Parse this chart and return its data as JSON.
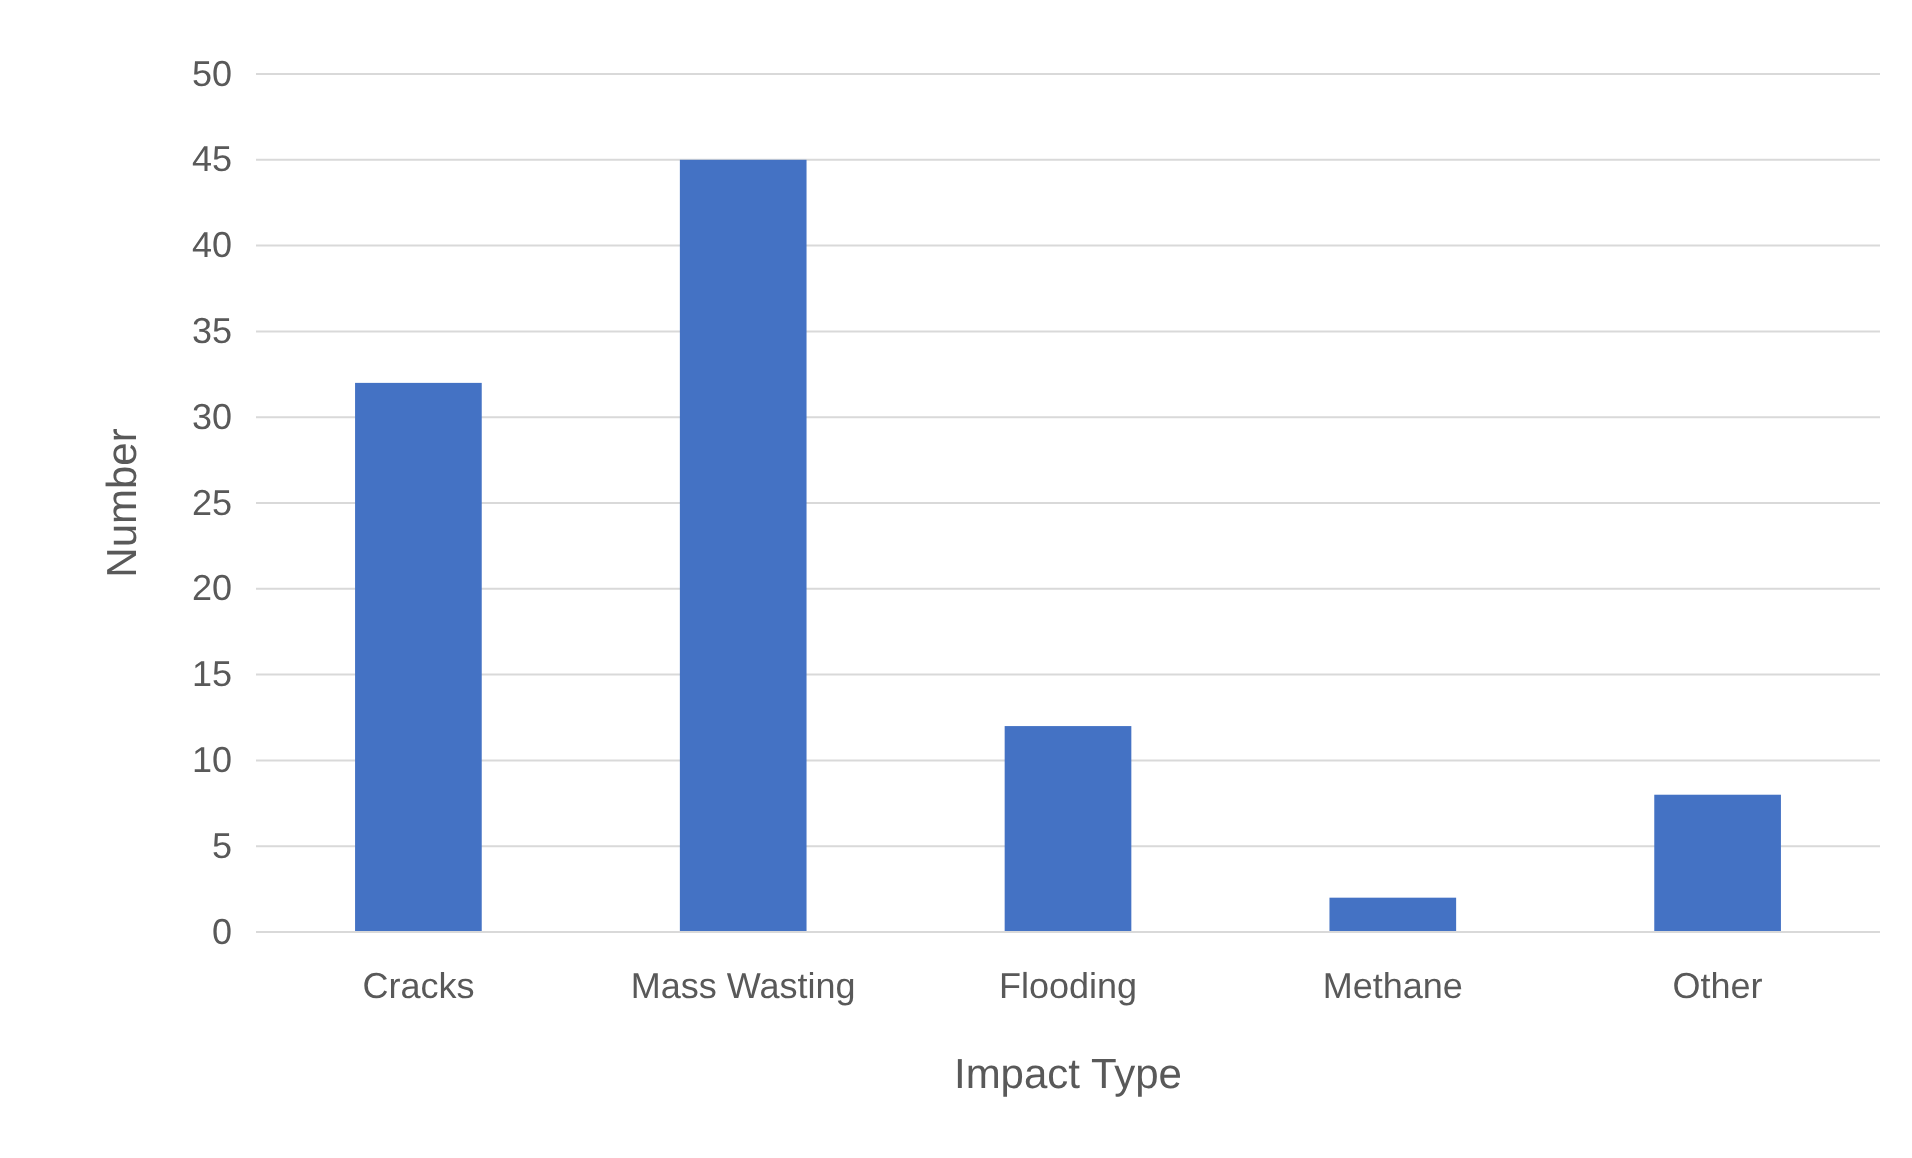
{
  "chart_data": {
    "type": "bar",
    "xlabel": "Impact Type",
    "ylabel": "Number",
    "categories": [
      "Cracks",
      "Mass Wasting",
      "Flooding",
      "Methane",
      "Other"
    ],
    "values": [
      32,
      45,
      12,
      2,
      8
    ],
    "color": "#4472c4",
    "ylim": [
      0,
      50
    ],
    "yticks": [
      0,
      5,
      10,
      15,
      20,
      25,
      30,
      35,
      40,
      45,
      50
    ],
    "grid": "y"
  }
}
